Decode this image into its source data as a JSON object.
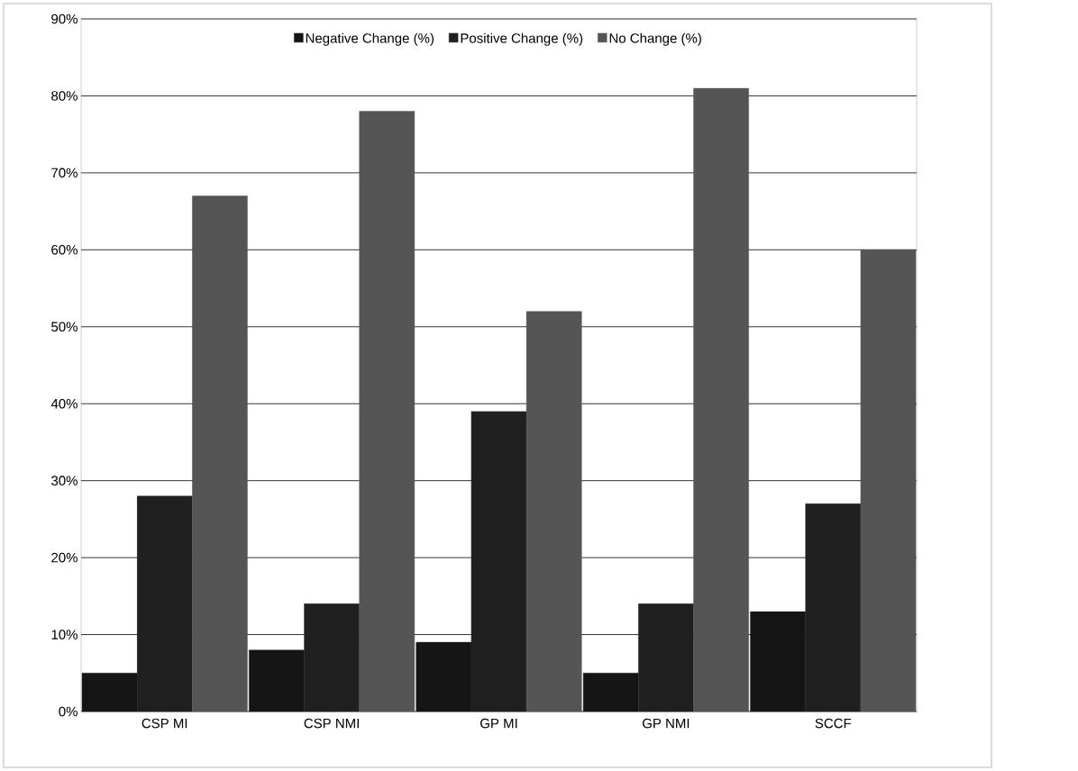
{
  "chart_data": {
    "type": "bar",
    "categories": [
      "CSP MI",
      "CSP NMI",
      "GP MI",
      "GP NMI",
      "SCCF"
    ],
    "series": [
      {
        "name": "Negative Change (%)",
        "color": "#151515",
        "values": [
          5,
          8,
          9,
          5,
          13
        ]
      },
      {
        "name": "Positive Change (%)",
        "color": "#202020",
        "values": [
          28,
          14,
          39,
          14,
          27
        ]
      },
      {
        "name": "No Change (%)",
        "color": "#555555",
        "values": [
          67,
          78,
          52,
          81,
          60
        ]
      }
    ],
    "ylim": [
      0,
      90
    ],
    "yticks": [
      {
        "value": 0,
        "label": "0%"
      },
      {
        "value": 10,
        "label": "10%"
      },
      {
        "value": 20,
        "label": "20%"
      },
      {
        "value": 30,
        "label": "30%"
      },
      {
        "value": 40,
        "label": "40%"
      },
      {
        "value": 50,
        "label": "50%"
      },
      {
        "value": 60,
        "label": "60%"
      },
      {
        "value": 70,
        "label": "70%"
      },
      {
        "value": 80,
        "label": "80%"
      },
      {
        "value": 90,
        "label": "90%"
      }
    ],
    "grid": "y",
    "legend": "top"
  }
}
